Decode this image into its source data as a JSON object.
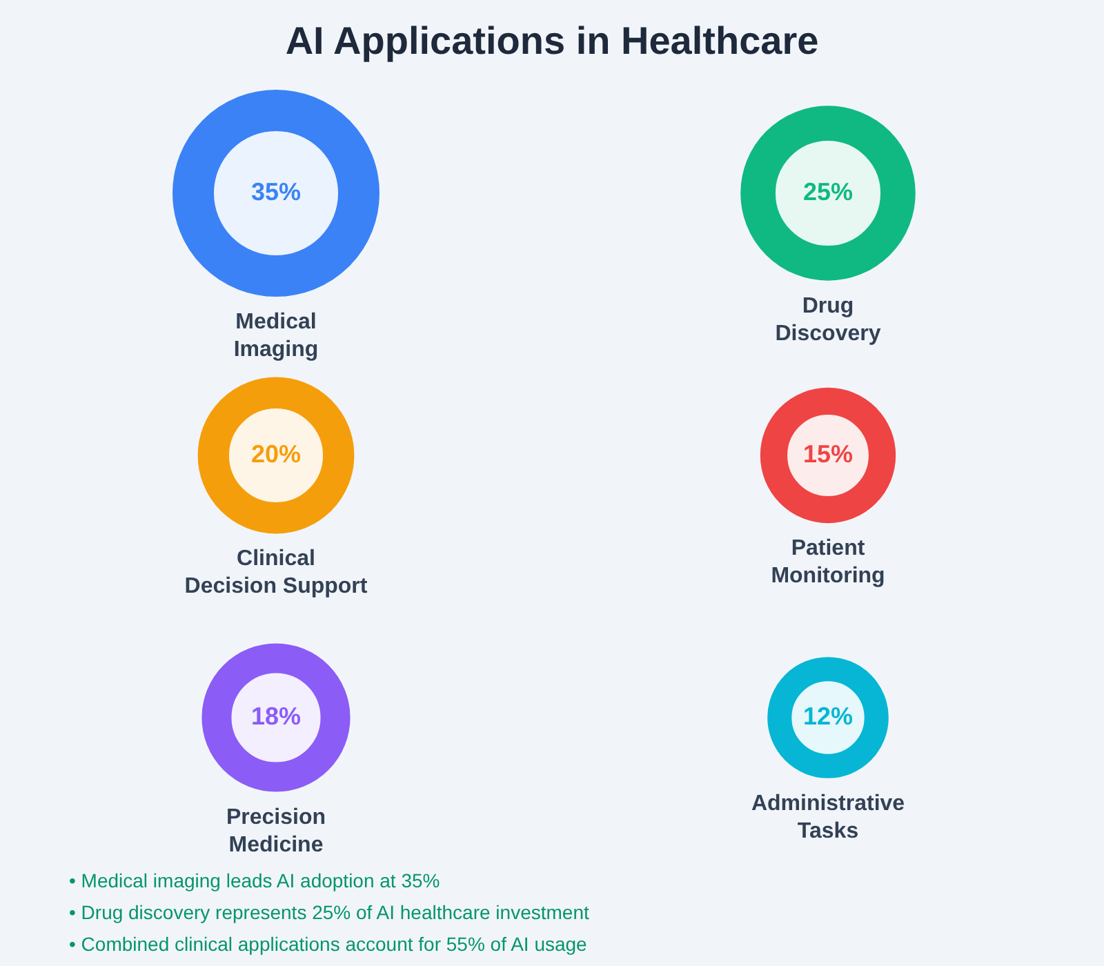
{
  "chart_data": {
    "type": "other",
    "title": "AI Applications in Healthcare",
    "categories": [
      "Medical Imaging",
      "Drug Discovery",
      "Clinical Decision Support",
      "Patient Monitoring",
      "Precision Medicine",
      "Administrative Tasks"
    ],
    "values": [
      35,
      25,
      20,
      15,
      18,
      12
    ],
    "colors": [
      "#3b82f6",
      "#10b981",
      "#f59e0b",
      "#ef4444",
      "#8b5cf6",
      "#06b6d4"
    ],
    "value_labels": [
      "35%",
      "25%",
      "20%",
      "15%",
      "18%",
      "12%"
    ],
    "annotations": [
      "• Medical imaging leads AI adoption at 35%",
      "• Drug discovery represents 25% of AI healthcare investment",
      "• Combined clinical applications account for 55% of AI usage"
    ]
  }
}
